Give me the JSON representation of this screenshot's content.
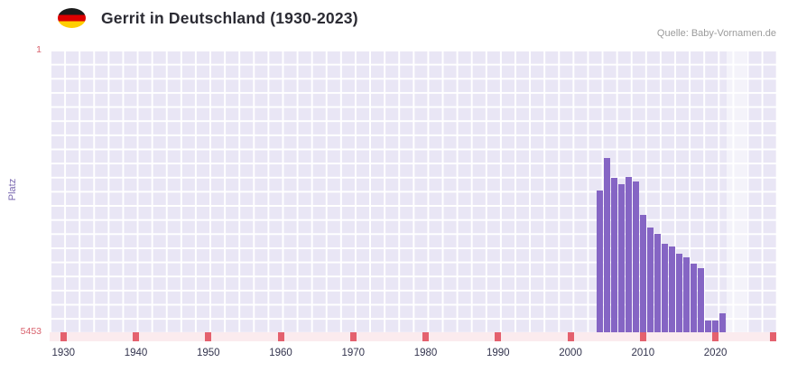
{
  "header": {
    "title": "Gerrit in Deutschland (1930-2023)",
    "source": "Quelle: Baby-Vornamen.de",
    "flag": "germany-flag"
  },
  "chart_data": {
    "type": "bar",
    "title": "Gerrit in Deutschland (1930-2023)",
    "xlabel": "",
    "ylabel": "Platz",
    "y_axis": {
      "range": [
        1,
        5453
      ],
      "inverted": true,
      "top_label": "1",
      "bottom_label": "5453"
    },
    "x_axis": {
      "range": [
        1928.1,
        2028.4
      ],
      "ticks": [
        1930,
        1940,
        1950,
        1960,
        1970,
        1980,
        1990,
        2000,
        2010,
        2020
      ]
    },
    "bar_color": "#8565c4",
    "plot_background": "#e9e6f5",
    "grid": true,
    "highlight_band": {
      "from_year": 2021.6,
      "to_year": 2024.3
    },
    "points": [
      {
        "year": 2004,
        "rank": 2720
      },
      {
        "year": 2005,
        "rank": 2090
      },
      {
        "year": 2006,
        "rank": 2480
      },
      {
        "year": 2007,
        "rank": 2600
      },
      {
        "year": 2008,
        "rank": 2460
      },
      {
        "year": 2009,
        "rank": 2540
      },
      {
        "year": 2010,
        "rank": 3190
      },
      {
        "year": 2011,
        "rank": 3440
      },
      {
        "year": 2012,
        "rank": 3560
      },
      {
        "year": 2013,
        "rank": 3740
      },
      {
        "year": 2014,
        "rank": 3800
      },
      {
        "year": 2015,
        "rank": 3940
      },
      {
        "year": 2016,
        "rank": 4010
      },
      {
        "year": 2017,
        "rank": 4130
      },
      {
        "year": 2018,
        "rank": 4220
      },
      {
        "year": 2019,
        "rank": 5230
      },
      {
        "year": 2020,
        "rank": 5230
      },
      {
        "year": 2021,
        "rank": 5080
      }
    ]
  }
}
